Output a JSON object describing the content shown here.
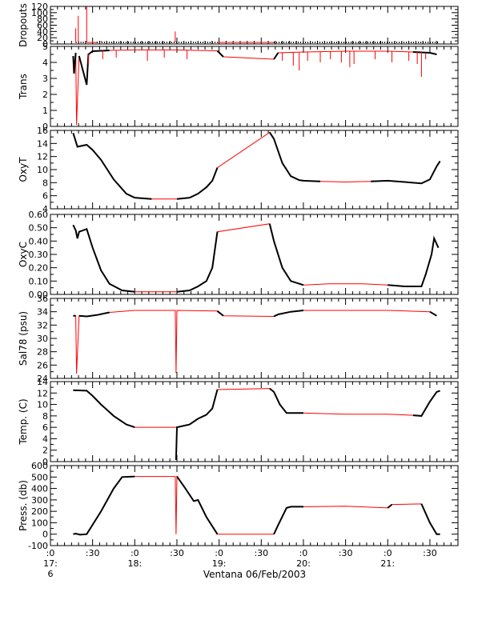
{
  "chart_data": {
    "type": "line",
    "x_unit": "hours (decimal, local time on 06/Feb/2003)",
    "x_range": [
      17.0,
      21.833
    ],
    "xlabel": "Ventana 06/Feb/2003",
    "x_ticks": [
      {
        "x": 17.0,
        "lines": [
          ":0",
          "17:",
          "6"
        ]
      },
      {
        "x": 17.5,
        "lines": [
          ":30"
        ]
      },
      {
        "x": 18.0,
        "lines": [
          ":0",
          "18:"
        ]
      },
      {
        "x": 18.5,
        "lines": [
          ":30"
        ]
      },
      {
        "x": 19.0,
        "lines": [
          ":0",
          "19:"
        ]
      },
      {
        "x": 19.5,
        "lines": [
          ":30"
        ]
      },
      {
        "x": 20.0,
        "lines": [
          ":0",
          "20:"
        ]
      },
      {
        "x": 20.5,
        "lines": [
          ":30"
        ]
      },
      {
        "x": 21.0,
        "lines": [
          ":0",
          "21:"
        ]
      },
      {
        "x": 21.5,
        "lines": [
          ":30"
        ]
      }
    ],
    "colors": {
      "series": "#000000",
      "gap_connector": "#ff0000",
      "axes": "#000000"
    },
    "panels": [
      {
        "ylabel": "Dropouts",
        "ylim": [
          0,
          120
        ],
        "yticks": [
          0,
          20,
          40,
          60,
          80,
          100,
          120
        ],
        "baseline": 5,
        "segments": [
          [
            17.3,
            17.43
          ],
          [
            17.55,
            18.98
          ],
          [
            19.65,
            21.6
          ]
        ],
        "spikes": [
          [
            17.3,
            50
          ],
          [
            17.33,
            90
          ],
          [
            17.43,
            120
          ],
          [
            17.6,
            10
          ],
          [
            18.48,
            40
          ]
        ]
      },
      {
        "ylabel": "Trans",
        "ylim": [
          0,
          5
        ],
        "yticks": [
          0,
          1,
          2,
          3,
          4,
          5
        ],
        "points": [
          [
            17.27,
            4.4
          ],
          [
            17.28,
            3.3
          ],
          [
            17.3,
            4.6
          ],
          [
            17.31,
            0.1
          ],
          [
            17.34,
            4.4
          ],
          [
            17.43,
            2.6
          ],
          [
            17.45,
            4.5
          ],
          [
            17.5,
            4.7
          ],
          [
            17.7,
            4.75
          ],
          [
            18.0,
            4.78
          ],
          [
            18.5,
            4.78
          ],
          [
            18.98,
            4.72
          ],
          [
            19.05,
            4.35
          ],
          [
            19.65,
            4.2
          ],
          [
            19.7,
            4.6
          ],
          [
            20.0,
            4.65
          ],
          [
            20.5,
            4.7
          ],
          [
            21.0,
            4.7
          ],
          [
            21.3,
            4.65
          ],
          [
            21.5,
            4.6
          ],
          [
            21.58,
            4.5
          ]
        ],
        "spikes": [
          [
            17.45,
            3.9
          ],
          [
            17.62,
            4.2
          ],
          [
            17.78,
            4.3
          ],
          [
            18.15,
            4.1
          ],
          [
            18.35,
            4.3
          ],
          [
            18.62,
            4.2
          ],
          [
            19.75,
            4.1
          ],
          [
            19.88,
            3.8
          ],
          [
            19.95,
            3.5
          ],
          [
            20.05,
            4.1
          ],
          [
            20.2,
            4.0
          ],
          [
            20.32,
            4.2
          ],
          [
            20.45,
            4.0
          ],
          [
            20.55,
            3.7
          ],
          [
            20.6,
            3.9
          ],
          [
            20.85,
            4.2
          ],
          [
            21.05,
            4.0
          ],
          [
            21.25,
            4.1
          ],
          [
            21.35,
            3.9
          ],
          [
            21.4,
            3.1
          ],
          [
            21.45,
            4.2
          ]
        ]
      },
      {
        "ylabel": "OxyT",
        "ylim": [
          4,
          16
        ],
        "yticks": [
          4,
          6,
          8,
          10,
          12,
          14,
          16
        ],
        "points": [
          [
            17.27,
            15.6
          ],
          [
            17.32,
            13.5
          ],
          [
            17.43,
            13.8
          ],
          [
            17.5,
            13.0
          ],
          [
            17.6,
            11.5
          ],
          [
            17.75,
            8.5
          ],
          [
            17.9,
            6.3
          ],
          [
            18.0,
            5.7
          ],
          [
            18.2,
            5.5
          ],
          [
            18.5,
            5.5
          ],
          [
            18.65,
            5.7
          ],
          [
            18.75,
            6.3
          ],
          [
            18.85,
            7.3
          ],
          [
            18.92,
            8.3
          ],
          [
            18.98,
            10.3
          ],
          [
            19.6,
            15.7
          ],
          [
            19.65,
            14.7
          ],
          [
            19.75,
            11.0
          ],
          [
            19.85,
            9.0
          ],
          [
            19.95,
            8.4
          ],
          [
            20.0,
            8.3
          ],
          [
            20.2,
            8.2
          ],
          [
            20.5,
            8.1
          ],
          [
            20.8,
            8.2
          ],
          [
            21.0,
            8.3
          ],
          [
            21.2,
            8.1
          ],
          [
            21.4,
            7.9
          ],
          [
            21.5,
            8.5
          ],
          [
            21.58,
            10.5
          ],
          [
            21.62,
            11.3
          ]
        ]
      },
      {
        "ylabel": "OxyC",
        "ylim": [
          0,
          0.6
        ],
        "yticks": [
          0.0,
          0.1,
          0.2,
          0.3,
          0.4,
          0.5,
          0.6
        ],
        "points": [
          [
            17.27,
            0.52
          ],
          [
            17.3,
            0.48
          ],
          [
            17.32,
            0.42
          ],
          [
            17.34,
            0.47
          ],
          [
            17.43,
            0.49
          ],
          [
            17.5,
            0.35
          ],
          [
            17.6,
            0.18
          ],
          [
            17.7,
            0.08
          ],
          [
            17.85,
            0.03
          ],
          [
            18.0,
            0.02
          ],
          [
            18.5,
            0.02
          ],
          [
            18.65,
            0.03
          ],
          [
            18.75,
            0.06
          ],
          [
            18.85,
            0.1
          ],
          [
            18.92,
            0.2
          ],
          [
            18.98,
            0.47
          ],
          [
            19.6,
            0.53
          ],
          [
            19.65,
            0.4
          ],
          [
            19.75,
            0.2
          ],
          [
            19.85,
            0.1
          ],
          [
            20.0,
            0.07
          ],
          [
            20.3,
            0.08
          ],
          [
            20.7,
            0.08
          ],
          [
            21.0,
            0.07
          ],
          [
            21.2,
            0.06
          ],
          [
            21.4,
            0.06
          ],
          [
            21.45,
            0.15
          ],
          [
            21.52,
            0.3
          ],
          [
            21.55,
            0.42
          ],
          [
            21.6,
            0.35
          ]
        ]
      },
      {
        "ylabel": "Sal78 (psu)",
        "ylim": [
          24,
          36
        ],
        "yticks": [
          24,
          26,
          28,
          30,
          32,
          34,
          36
        ],
        "points": [
          [
            17.27,
            33.4
          ],
          [
            17.3,
            33.4
          ],
          [
            17.31,
            24.7
          ],
          [
            17.34,
            33.4
          ],
          [
            17.43,
            33.3
          ],
          [
            17.55,
            33.5
          ],
          [
            17.7,
            33.9
          ],
          [
            18.0,
            34.2
          ],
          [
            18.48,
            34.2
          ],
          [
            18.49,
            24.8
          ],
          [
            18.5,
            34.2
          ],
          [
            18.98,
            34.1
          ],
          [
            19.05,
            33.4
          ],
          [
            19.65,
            33.3
          ],
          [
            19.7,
            33.6
          ],
          [
            19.85,
            34.0
          ],
          [
            20.0,
            34.2
          ],
          [
            21.0,
            34.2
          ],
          [
            21.5,
            34.0
          ],
          [
            21.58,
            33.4
          ]
        ]
      },
      {
        "ylabel": "Temp. (C)",
        "ylim": [
          0,
          14
        ],
        "yticks": [
          0,
          2,
          4,
          6,
          8,
          10,
          12,
          14
        ],
        "points": [
          [
            17.27,
            12.5
          ],
          [
            17.43,
            12.4
          ],
          [
            17.5,
            11.5
          ],
          [
            17.6,
            10.0
          ],
          [
            17.75,
            8.0
          ],
          [
            17.9,
            6.5
          ],
          [
            18.0,
            6.0
          ],
          [
            18.5,
            6.0
          ],
          [
            18.49,
            0.3
          ],
          [
            18.5,
            6.0
          ],
          [
            18.65,
            6.5
          ],
          [
            18.75,
            7.5
          ],
          [
            18.85,
            8.2
          ],
          [
            18.92,
            9.3
          ],
          [
            18.98,
            12.6
          ],
          [
            19.6,
            12.8
          ],
          [
            19.65,
            12.2
          ],
          [
            19.72,
            10.0
          ],
          [
            19.8,
            8.5
          ],
          [
            20.0,
            8.5
          ],
          [
            20.5,
            8.3
          ],
          [
            21.0,
            8.3
          ],
          [
            21.3,
            8.1
          ],
          [
            21.4,
            8.0
          ],
          [
            21.5,
            10.5
          ],
          [
            21.58,
            12.2
          ],
          [
            21.62,
            12.4
          ]
        ]
      },
      {
        "ylabel": "Press. (db)",
        "ylim": [
          -100,
          600
        ],
        "yticks": [
          -100,
          0,
          100,
          200,
          300,
          400,
          500,
          600
        ],
        "points": [
          [
            17.27,
            0
          ],
          [
            17.3,
            5
          ],
          [
            17.35,
            -5
          ],
          [
            17.43,
            0
          ],
          [
            17.6,
            200
          ],
          [
            17.75,
            400
          ],
          [
            17.85,
            500
          ],
          [
            18.0,
            505
          ],
          [
            18.48,
            505
          ],
          [
            18.49,
            0
          ],
          [
            18.5,
            505
          ],
          [
            18.6,
            400
          ],
          [
            18.7,
            290
          ],
          [
            18.75,
            300
          ],
          [
            18.85,
            150
          ],
          [
            18.98,
            0
          ],
          [
            19.65,
            0
          ],
          [
            19.7,
            80
          ],
          [
            19.8,
            230
          ],
          [
            19.85,
            240
          ],
          [
            20.0,
            240
          ],
          [
            20.5,
            245
          ],
          [
            21.0,
            230
          ],
          [
            21.05,
            260
          ],
          [
            21.4,
            265
          ],
          [
            21.5,
            100
          ],
          [
            21.58,
            0
          ],
          [
            21.62,
            0
          ]
        ]
      }
    ]
  }
}
